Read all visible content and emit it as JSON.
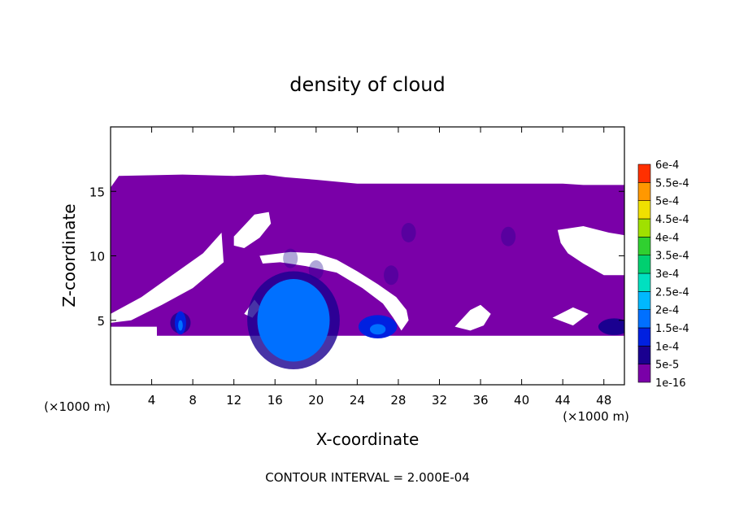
{
  "chart_data": {
    "type": "heatmap",
    "title": "density of cloud",
    "xlabel": "X-coordinate",
    "ylabel": "Z-coordinate",
    "x_unit_left": "(×1000 m)",
    "x_unit_right": "(×1000 m)",
    "xlim": [
      0,
      50
    ],
    "ylim": [
      0,
      20
    ],
    "x_ticks": [
      4,
      8,
      12,
      16,
      20,
      24,
      28,
      32,
      36,
      40,
      44,
      48
    ],
    "y_ticks": [
      5,
      10,
      15
    ],
    "footer": "CONTOUR INTERVAL = 2.000E-04",
    "colorbar": {
      "labels": [
        "1e-16",
        "5e-5",
        "1e-4",
        "1.5e-4",
        "2e-4",
        "2.5e-4",
        "3e-4",
        "3.5e-4",
        "4e-4",
        "4.5e-4",
        "5e-4",
        "5.5e-4",
        "6e-4"
      ],
      "colors": [
        "#7a00a8",
        "#1a0090",
        "#0020e0",
        "#0070ff",
        "#00b8ff",
        "#00e0c0",
        "#00d070",
        "#30d030",
        "#a0e000",
        "#f0e000",
        "#ff9800",
        "#ff3000",
        "#ff8080"
      ]
    },
    "cloud_top_z": 16.2,
    "cloud_base_z": 3.8,
    "cores": [
      {
        "x": 6.8,
        "z": 4.8,
        "level": "1e-4"
      },
      {
        "x": 17.8,
        "z": 5.0,
        "level": "1.5e-4"
      },
      {
        "x": 26.0,
        "z": 4.5,
        "level": "1e-4"
      },
      {
        "x": 49.0,
        "z": 4.5,
        "level": "5e-5"
      }
    ]
  }
}
